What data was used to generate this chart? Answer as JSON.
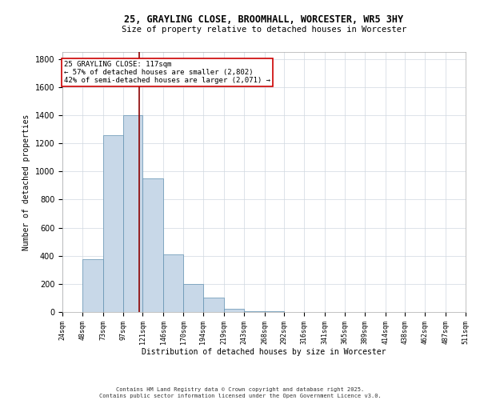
{
  "title_line1": "25, GRAYLING CLOSE, BROOMHALL, WORCESTER, WR5 3HY",
  "title_line2": "Size of property relative to detached houses in Worcester",
  "xlabel": "Distribution of detached houses by size in Worcester",
  "ylabel": "Number of detached properties",
  "bin_edges": [
    24,
    48,
    73,
    97,
    121,
    146,
    170,
    194,
    219,
    243,
    268,
    292,
    316,
    341,
    365,
    389,
    414,
    438,
    462,
    487,
    511
  ],
  "bar_heights": [
    0,
    375,
    1260,
    1400,
    950,
    410,
    200,
    100,
    20,
    8,
    3,
    2,
    1,
    1,
    0,
    0,
    0,
    0,
    0,
    0
  ],
  "bar_color": "#c8d8e8",
  "bar_edge_color": "#6090b0",
  "property_size": 117,
  "vline_color": "#8b0000",
  "annotation_line1": "25 GRAYLING CLOSE: 117sqm",
  "annotation_line2": "← 57% of detached houses are smaller (2,802)",
  "annotation_line3": "42% of semi-detached houses are larger (2,071) →",
  "annotation_box_color": "#ffffff",
  "annotation_box_edge_color": "#cc0000",
  "ylim": [
    0,
    1850
  ],
  "yticks": [
    0,
    200,
    400,
    600,
    800,
    1000,
    1200,
    1400,
    1600,
    1800
  ],
  "tick_labels": [
    "24sqm",
    "48sqm",
    "73sqm",
    "97sqm",
    "121sqm",
    "146sqm",
    "170sqm",
    "194sqm",
    "219sqm",
    "243sqm",
    "268sqm",
    "292sqm",
    "316sqm",
    "341sqm",
    "365sqm",
    "389sqm",
    "414sqm",
    "438sqm",
    "462sqm",
    "487sqm",
    "511sqm"
  ],
  "footer_line1": "Contains HM Land Registry data © Crown copyright and database right 2025.",
  "footer_line2": "Contains public sector information licensed under the Open Government Licence v3.0.",
  "bg_color": "#ffffff",
  "grid_color": "#d0d8e0",
  "title_fontsize": 8.5,
  "subtitle_fontsize": 7.5,
  "xlabel_fontsize": 7,
  "ylabel_fontsize": 7,
  "tick_fontsize": 6,
  "ytick_fontsize": 7,
  "annotation_fontsize": 6.5,
  "footer_fontsize": 5
}
